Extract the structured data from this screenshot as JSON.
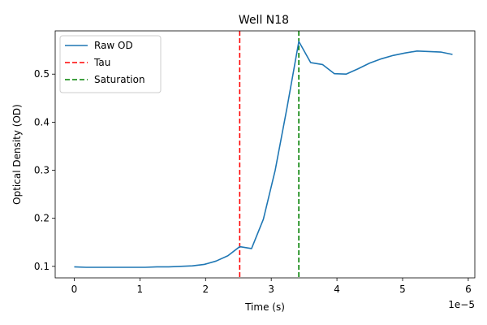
{
  "chart_data": {
    "type": "line",
    "title": "Well N18",
    "xlabel": "Time (s)",
    "ylabel": "Optical Density (OD)",
    "x_offset_label": "1e−5",
    "xlim": [
      -0.29,
      6.1
    ],
    "ylim": [
      0.076,
      0.59
    ],
    "x_scale": 1e-05,
    "x_ticks": [
      0,
      1,
      2,
      3,
      4,
      5,
      6
    ],
    "x_tick_labels": [
      "0",
      "1",
      "2",
      "3",
      "4",
      "5",
      "6"
    ],
    "y_ticks": [
      0.1,
      0.2,
      0.3,
      0.4,
      0.5
    ],
    "y_tick_labels": [
      "0.1",
      "0.2",
      "0.3",
      "0.4",
      "0.5"
    ],
    "grid": false,
    "legend_position": "top-left",
    "series": [
      {
        "name": "Raw OD",
        "color": "#1f77b4",
        "style": "solid",
        "x": [
          0,
          0.18,
          0.36,
          0.54,
          0.72,
          0.9,
          1.08,
          1.26,
          1.44,
          1.62,
          1.8,
          1.98,
          2.16,
          2.34,
          2.52,
          2.7,
          2.88,
          3.06,
          3.24,
          3.42,
          3.6,
          3.78,
          3.96,
          4.14,
          4.32,
          4.5,
          4.68,
          4.86,
          5.04,
          5.22,
          5.4,
          5.58,
          5.76
        ],
        "y": [
          0.099,
          0.098,
          0.098,
          0.098,
          0.098,
          0.098,
          0.098,
          0.099,
          0.099,
          0.1,
          0.101,
          0.104,
          0.111,
          0.122,
          0.141,
          0.137,
          0.198,
          0.3,
          0.43,
          0.568,
          0.524,
          0.52,
          0.501,
          0.5,
          0.511,
          0.523,
          0.532,
          0.539,
          0.544,
          0.548,
          0.547,
          0.546,
          0.541
        ]
      }
    ],
    "vlines": [
      {
        "name": "Tau",
        "x": 2.52,
        "color": "#ff0000",
        "style": "dashed"
      },
      {
        "name": "Saturation",
        "x": 3.42,
        "color": "#008000",
        "style": "dashed"
      }
    ]
  }
}
